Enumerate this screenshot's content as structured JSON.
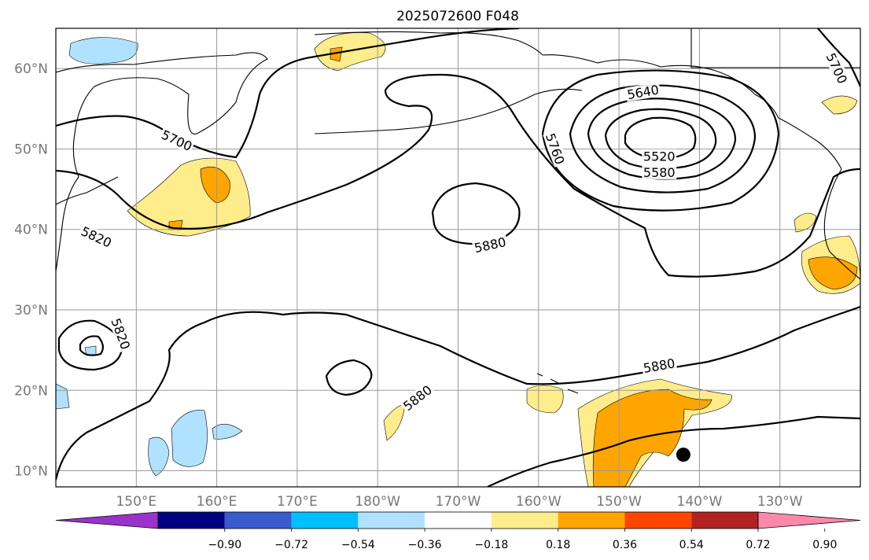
{
  "title": "2025072600 F048",
  "map": {
    "lon_range": [
      140,
      240
    ],
    "lat_range": [
      8,
      65
    ],
    "lat_ticks": [
      {
        "value": 10,
        "label": "10°N"
      },
      {
        "value": 20,
        "label": "20°N"
      },
      {
        "value": 30,
        "label": "30°N"
      },
      {
        "value": 40,
        "label": "40°N"
      },
      {
        "value": 50,
        "label": "50°N"
      },
      {
        "value": 60,
        "label": "60°N"
      }
    ],
    "lon_ticks": [
      {
        "value": 150,
        "label": "150°E"
      },
      {
        "value": 160,
        "label": "160°E"
      },
      {
        "value": 170,
        "label": "170°E"
      },
      {
        "value": 180,
        "label": "180°W"
      },
      {
        "value": 190,
        "label": "170°W"
      },
      {
        "value": 200,
        "label": "160°W"
      },
      {
        "value": 210,
        "label": "150°W"
      },
      {
        "value": 220,
        "label": "140°W"
      },
      {
        "value": 230,
        "label": "130°W"
      }
    ],
    "contour_labels": [
      {
        "text": "5700",
        "lon": 155,
        "lat": 51,
        "rotate": 25
      },
      {
        "text": "5820",
        "lon": 145,
        "lat": 39,
        "rotate": 25
      },
      {
        "text": "5820",
        "lon": 148,
        "lat": 27,
        "rotate": 70
      },
      {
        "text": "5880",
        "lon": 194,
        "lat": 38,
        "rotate": -12
      },
      {
        "text": "5880",
        "lon": 185,
        "lat": 19,
        "rotate": -38
      },
      {
        "text": "5880",
        "lon": 215,
        "lat": 23,
        "rotate": -10
      },
      {
        "text": "5760",
        "lon": 202,
        "lat": 50,
        "rotate": 70
      },
      {
        "text": "5640",
        "lon": 213,
        "lat": 57,
        "rotate": -10
      },
      {
        "text": "5520",
        "lon": 215,
        "lat": 49,
        "rotate": 0
      },
      {
        "text": "5580",
        "lon": 215,
        "lat": 47,
        "rotate": 0
      },
      {
        "text": "5700",
        "lon": 237,
        "lat": 60,
        "rotate": 65
      }
    ],
    "marker": {
      "name": "point",
      "lon": 218,
      "lat": 12
    }
  },
  "colorbar": {
    "colors": [
      "#9933cc",
      "#000080",
      "#3a5bd0",
      "#00bfff",
      "#b0e2ff",
      "#ffffff",
      "#ffec8b",
      "#ffa500",
      "#ff4500",
      "#b22222",
      "#ff88aa"
    ],
    "tick_labels": [
      "−0.90",
      "−0.72",
      "−0.54",
      "−0.36",
      "−0.18",
      "0.18",
      "0.36",
      "0.54",
      "0.72",
      "0.90"
    ]
  }
}
